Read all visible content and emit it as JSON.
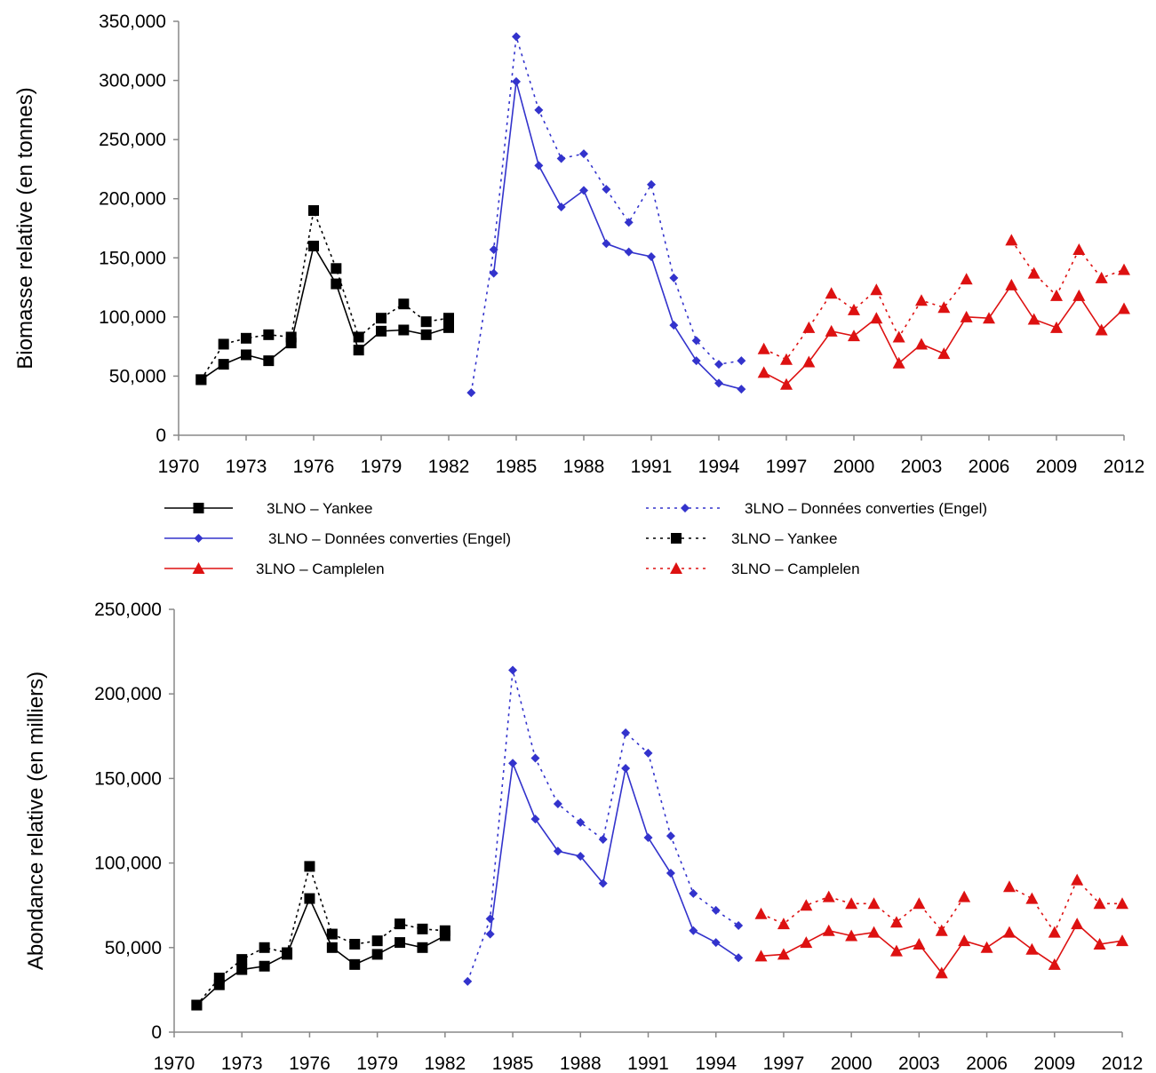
{
  "colors": {
    "yankee": "#000000",
    "engel": "#3333cc",
    "campelen": "#dd1111",
    "axis": "#888888"
  },
  "legend": {
    "items": [
      {
        "label": "3LNO – Yankee",
        "series": "yankee",
        "style": "solid"
      },
      {
        "label": "3LNO – Données converties (Engel)",
        "series": "engel",
        "style": "solid"
      },
      {
        "label": "3LNO – Camplelen",
        "series": "campelen",
        "style": "solid"
      },
      {
        "label": "3LNO – Données converties (Engel)",
        "series": "engel",
        "style": "dotted"
      },
      {
        "label": "3LNO – Yankee",
        "series": "yankee",
        "style": "dotted"
      },
      {
        "label": "3LNO – Camplelen",
        "series": "campelen",
        "style": "dotted"
      }
    ]
  },
  "chart_data": [
    {
      "type": "line",
      "ylabel": "Biomasse relative (en tonnes)",
      "xlabel": "",
      "xlim": [
        1970,
        2012
      ],
      "ylim": [
        0,
        350000
      ],
      "xticks": [
        "1970",
        "1973",
        "1976",
        "1979",
        "1982",
        "1985",
        "1988",
        "1991",
        "1994",
        "1997",
        "2000",
        "2003",
        "2006",
        "2009",
        "2012"
      ],
      "yticks": [
        "0",
        "50,000",
        "100,000",
        "150,000",
        "200,000",
        "250,000",
        "300,000",
        "350,000"
      ],
      "series": [
        {
          "name": "3LNO – Yankee",
          "style": "solid",
          "marker": "square",
          "color_key": "yankee",
          "x": [
            1971,
            1972,
            1973,
            1974,
            1975,
            1976,
            1977,
            1978,
            1979,
            1980,
            1981,
            1982
          ],
          "y": [
            47000,
            60000,
            68000,
            63000,
            78000,
            160000,
            128000,
            72000,
            88000,
            89000,
            85000,
            91000
          ]
        },
        {
          "name": "3LNO – Yankee",
          "style": "dotted",
          "marker": "square",
          "color_key": "yankee",
          "x": [
            1971,
            1972,
            1973,
            1974,
            1975,
            1976,
            1977,
            1978,
            1979,
            1980,
            1981,
            1982
          ],
          "y": [
            47000,
            77000,
            82000,
            85000,
            83000,
            190000,
            141000,
            83000,
            99000,
            111000,
            96000,
            99000
          ]
        },
        {
          "name": "3LNO – Données converties (Engel)",
          "style": "solid",
          "marker": "diamond",
          "color_key": "engel",
          "x": [
            1984,
            1985,
            1986,
            1987,
            1988,
            1989,
            1990,
            1991,
            1992,
            1993,
            1994,
            1995
          ],
          "y": [
            137000,
            299000,
            228000,
            193000,
            207000,
            162000,
            155000,
            151000,
            93000,
            63000,
            44000,
            39000
          ]
        },
        {
          "name": "3LNO – Données converties (Engel)",
          "style": "dotted",
          "marker": "diamond",
          "color_key": "engel",
          "x": [
            1983,
            1984,
            1985,
            1986,
            1987,
            1988,
            1989,
            1990,
            1991,
            1992,
            1993,
            1994,
            1995
          ],
          "y": [
            36000,
            157000,
            337000,
            275000,
            234000,
            238000,
            208000,
            180000,
            212000,
            133000,
            80000,
            60000,
            63000
          ]
        },
        {
          "name": "3LNO – Camplelen",
          "style": "solid",
          "marker": "triangle",
          "color_key": "campelen",
          "x": [
            1996,
            1997,
            1998,
            1999,
            2000,
            2001,
            2002,
            2003,
            2004,
            2005,
            2006,
            2007,
            2008,
            2009,
            2010,
            2011,
            2012
          ],
          "y": [
            53000,
            43000,
            62000,
            88000,
            84000,
            99000,
            61000,
            77000,
            69000,
            100000,
            99000,
            127000,
            98000,
            91000,
            118000,
            89000,
            107000
          ]
        },
        {
          "name": "3LNO – Camplelen",
          "style": "dotted",
          "marker": "triangle",
          "color_key": "campelen",
          "x": [
            1996,
            1997,
            1998,
            1999,
            2000,
            2001,
            2002,
            2003,
            2004,
            2005,
            2006,
            2007,
            2008,
            2009,
            2010,
            2011,
            2012
          ],
          "y": [
            73000,
            64000,
            91000,
            120000,
            106000,
            123000,
            83000,
            114000,
            108000,
            132000,
            null,
            165000,
            137000,
            118000,
            157000,
            133000,
            140000
          ]
        }
      ]
    },
    {
      "type": "line",
      "ylabel": "Abondance relative (en milliers)",
      "xlabel": "",
      "xlim": [
        1970,
        2012
      ],
      "ylim": [
        0,
        250000
      ],
      "xticks": [
        "1970",
        "1973",
        "1976",
        "1979",
        "1982",
        "1985",
        "1988",
        "1991",
        "1994",
        "1997",
        "2000",
        "2003",
        "2006",
        "2009",
        "2012"
      ],
      "yticks": [
        "0",
        "50,000",
        "100,000",
        "150,000",
        "200,000",
        "250,000"
      ],
      "series": [
        {
          "name": "3LNO – Yankee",
          "style": "solid",
          "marker": "square",
          "color_key": "yankee",
          "x": [
            1971,
            1972,
            1973,
            1974,
            1975,
            1976,
            1977,
            1978,
            1979,
            1980,
            1981,
            1982
          ],
          "y": [
            16000,
            28000,
            37000,
            39000,
            46000,
            79000,
            50000,
            40000,
            46000,
            53000,
            50000,
            57000
          ]
        },
        {
          "name": "3LNO – Yankee",
          "style": "dotted",
          "marker": "square",
          "color_key": "yankee",
          "x": [
            1971,
            1972,
            1973,
            1974,
            1975,
            1976,
            1977,
            1978,
            1979,
            1980,
            1981,
            1982
          ],
          "y": [
            16000,
            32000,
            43000,
            50000,
            47000,
            98000,
            58000,
            52000,
            54000,
            64000,
            61000,
            60000
          ]
        },
        {
          "name": "3LNO – Données converties (Engel)",
          "style": "solid",
          "marker": "diamond",
          "color_key": "engel",
          "x": [
            1984,
            1985,
            1986,
            1987,
            1988,
            1989,
            1990,
            1991,
            1992,
            1993,
            1994,
            1995
          ],
          "y": [
            58000,
            159000,
            126000,
            107000,
            104000,
            88000,
            156000,
            115000,
            94000,
            60000,
            53000,
            44000
          ]
        },
        {
          "name": "3LNO – Données converties (Engel)",
          "style": "dotted",
          "marker": "diamond",
          "color_key": "engel",
          "x": [
            1983,
            1984,
            1985,
            1986,
            1987,
            1988,
            1989,
            1990,
            1991,
            1992,
            1993,
            1994,
            1995
          ],
          "y": [
            30000,
            67000,
            214000,
            162000,
            135000,
            124000,
            114000,
            177000,
            165000,
            116000,
            82000,
            72000,
            63000
          ]
        },
        {
          "name": "3LNO – Camplelen",
          "style": "solid",
          "marker": "triangle",
          "color_key": "campelen",
          "x": [
            1996,
            1997,
            1998,
            1999,
            2000,
            2001,
            2002,
            2003,
            2004,
            2005,
            2006,
            2007,
            2008,
            2009,
            2010,
            2011,
            2012
          ],
          "y": [
            45000,
            46000,
            53000,
            60000,
            57000,
            59000,
            48000,
            52000,
            35000,
            54000,
            50000,
            59000,
            49000,
            40000,
            64000,
            52000,
            54000
          ]
        },
        {
          "name": "3LNO – Camplelen",
          "style": "dotted",
          "marker": "triangle",
          "color_key": "campelen",
          "x": [
            1996,
            1997,
            1998,
            1999,
            2000,
            2001,
            2002,
            2003,
            2004,
            2005,
            2006,
            2007,
            2008,
            2009,
            2010,
            2011,
            2012
          ],
          "y": [
            70000,
            64000,
            75000,
            80000,
            76000,
            76000,
            65000,
            76000,
            60000,
            80000,
            null,
            86000,
            79000,
            59000,
            90000,
            76000,
            76000
          ]
        }
      ]
    }
  ]
}
